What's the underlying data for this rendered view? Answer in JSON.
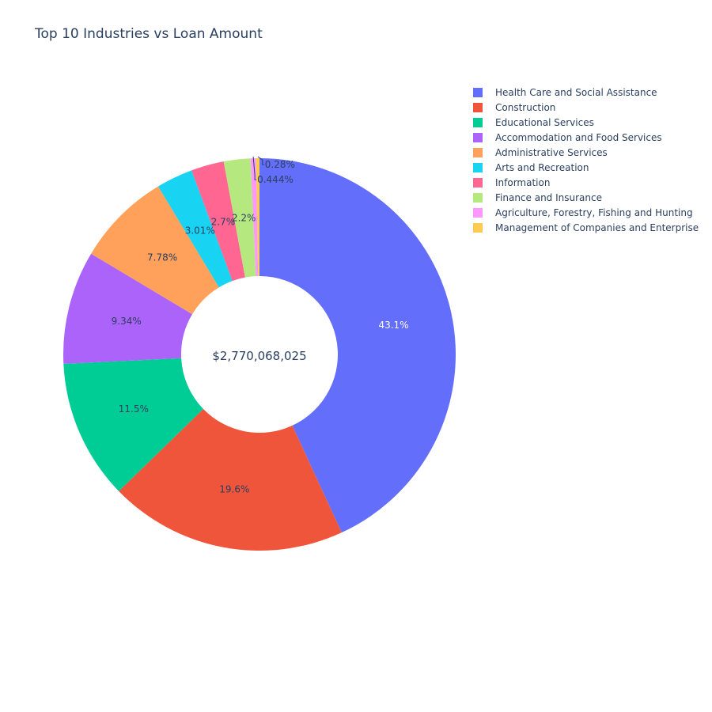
{
  "chart_data": {
    "type": "pie",
    "title": "Top 10 Industries vs Loan Amount",
    "hole": true,
    "center_label": "$2,770,068,025",
    "legend_position": "top-right",
    "slices": [
      {
        "label": "Health Care and Social Assistance",
        "percent": 43.1,
        "text": "43.1%",
        "color": "#636efa"
      },
      {
        "label": "Construction",
        "percent": 19.6,
        "text": "19.6%",
        "color": "#EF553B"
      },
      {
        "label": "Educational Services",
        "percent": 11.5,
        "text": "11.5%",
        "color": "#00cc96"
      },
      {
        "label": "Accommodation and Food Services",
        "percent": 9.34,
        "text": "9.34%",
        "color": "#ab63fa"
      },
      {
        "label": "Administrative Services",
        "percent": 7.78,
        "text": "7.78%",
        "color": "#FFA15A"
      },
      {
        "label": "Arts and Recreation",
        "percent": 3.01,
        "text": "3.01%",
        "color": "#19d3f3"
      },
      {
        "label": "Information",
        "percent": 2.7,
        "text": "2.7%",
        "color": "#FF6692"
      },
      {
        "label": "Finance and Insurance",
        "percent": 2.2,
        "text": "2.2%",
        "color": "#B6E880"
      },
      {
        "label": "Agriculture, Forestry, Fishing and Hunting",
        "percent": 0.444,
        "text": "0.444%",
        "color": "#FF97FF"
      },
      {
        "label": "Management of Companies and Enterprise",
        "percent": 0.28,
        "text": "0.28%",
        "color": "#FECB52"
      }
    ]
  }
}
